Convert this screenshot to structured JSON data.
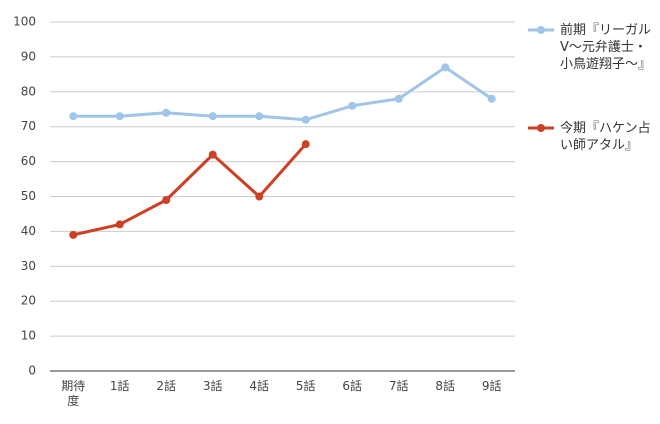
{
  "chart_data": {
    "type": "line",
    "categories": [
      "期待度",
      "1話",
      "2話",
      "3話",
      "4話",
      "5話",
      "6話",
      "7話",
      "8話",
      "9話"
    ],
    "series": [
      {
        "name": "前期『リーガルV～元弁護士・小鳥遊翔子～』",
        "color": "#9fc5e8",
        "values": [
          73,
          73,
          74,
          73,
          73,
          72,
          76,
          78,
          87,
          78
        ]
      },
      {
        "name": "今期『ハケン占い師アタル』",
        "color": "#cc4125",
        "values": [
          39,
          42,
          49,
          62,
          50,
          65,
          null,
          null,
          null,
          null
        ]
      }
    ],
    "ylim": [
      0,
      100
    ],
    "yticks": [
      0,
      10,
      20,
      30,
      40,
      50,
      60,
      70,
      80,
      90,
      100
    ],
    "grid": true,
    "legend": "right"
  }
}
